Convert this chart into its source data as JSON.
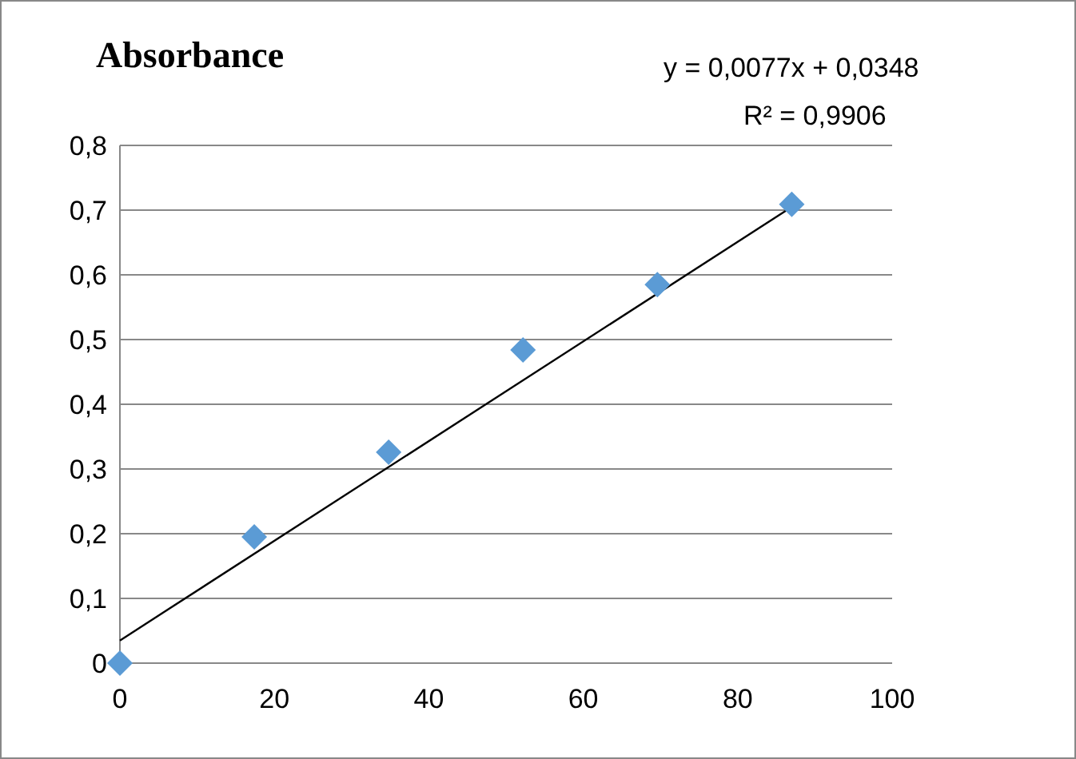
{
  "chart_data": {
    "type": "scatter",
    "title": "Absorbance",
    "annotations": [
      "y = 0,0077x + 0,0348",
      "R² = 0,9906"
    ],
    "xlim": [
      0,
      100
    ],
    "xticks": [
      0,
      20,
      40,
      60,
      80,
      100
    ],
    "ylim": [
      0,
      0.8
    ],
    "yticks": [
      {
        "value": 0,
        "label": "0"
      },
      {
        "value": 0.1,
        "label": "0,1"
      },
      {
        "value": 0.2,
        "label": "0,2"
      },
      {
        "value": 0.3,
        "label": "0,3"
      },
      {
        "value": 0.4,
        "label": "0,4"
      },
      {
        "value": 0.5,
        "label": "0,5"
      },
      {
        "value": 0.6,
        "label": "0,6"
      },
      {
        "value": 0.7,
        "label": "0,7"
      },
      {
        "value": 0.8,
        "label": "0,8"
      }
    ],
    "grid": "y",
    "marker": "diamond",
    "series": [
      {
        "color": "#5b9bd5",
        "x": [
          0,
          17.4,
          34.8,
          52.2,
          69.6,
          87
        ],
        "values": [
          0,
          0.195,
          0.326,
          0.484,
          0.585,
          0.709
        ]
      },
      {
        "type": "line",
        "color": "#000000",
        "x": [
          0,
          87
        ],
        "values": [
          0.035,
          0.705
        ],
        "marker": "none",
        "line_style": "solid"
      }
    ]
  }
}
